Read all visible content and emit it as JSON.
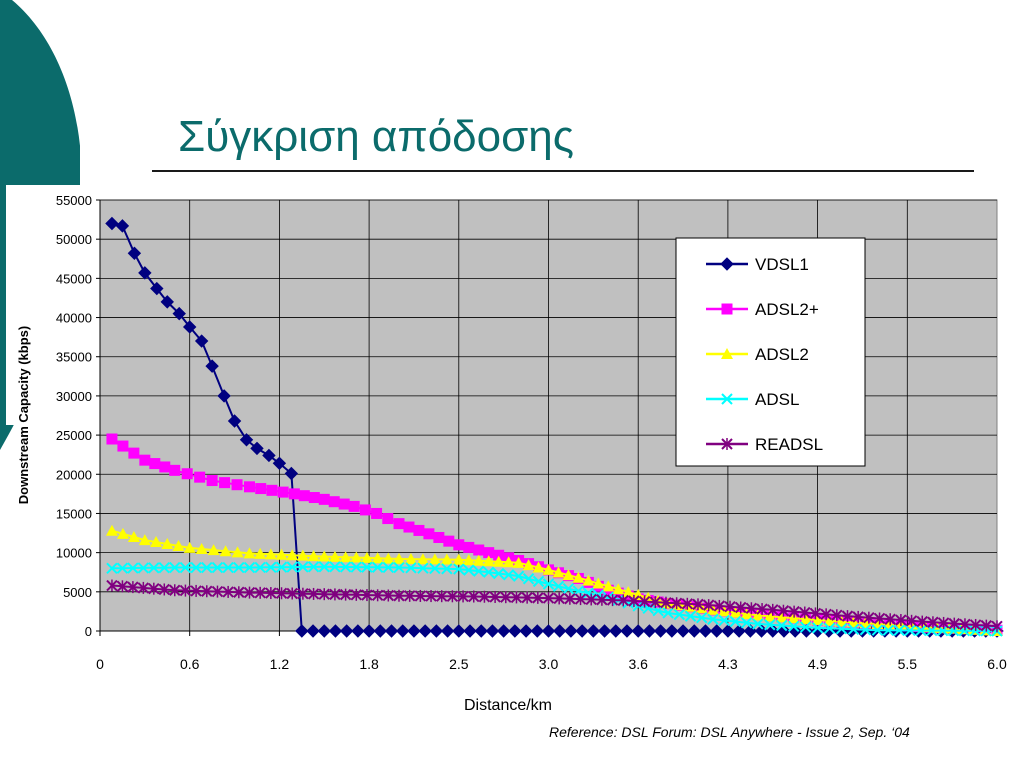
{
  "slide": {
    "title": "Σύγκριση απόδοσης",
    "reference": "Reference: DSL Forum: DSL Anywhere - Issue 2, Sep. ‘04",
    "accent_color": "#0b6b6b"
  },
  "chart_data": {
    "type": "line",
    "xlabel": "Distance/km",
    "ylabel": "Downstream Capacity (kbps)",
    "ylim": [
      0,
      55000
    ],
    "xlim": [
      0,
      6.0
    ],
    "yticks": [
      "0",
      "5000",
      "10000",
      "15000",
      "20000",
      "25000",
      "30000",
      "35000",
      "40000",
      "45000",
      "50000",
      "55000"
    ],
    "xticks": [
      "0",
      "0.6",
      "1.2",
      "1.8",
      "2.5",
      "3.0",
      "3.6",
      "4.3",
      "4.9",
      "5.5",
      "6.0"
    ],
    "grid": true,
    "legend_position": "top-right",
    "plot_background": "#c0c0c0",
    "series": [
      {
        "name": "VDSL1",
        "color": "#000080",
        "marker": "diamond",
        "x": [
          0.08,
          0.15,
          0.23,
          0.3,
          0.38,
          0.45,
          0.53,
          0.6,
          0.68,
          0.75,
          0.83,
          0.9,
          0.98,
          1.05,
          1.13,
          1.2,
          1.28,
          1.35
        ],
        "y": [
          52000,
          51700,
          48200,
          45700,
          43700,
          42000,
          40500,
          38800,
          37000,
          33800,
          30000,
          26800,
          24400,
          23300,
          22400,
          21400,
          20100,
          0
        ],
        "tail": {
          "from": 1.35,
          "step": 0.075,
          "value": 0
        }
      },
      {
        "name": "ADSL2+",
        "color": "#ff00ff",
        "marker": "square",
        "points": [
          [
            0.08,
            24500
          ],
          [
            0.3,
            21800
          ],
          [
            0.5,
            20500
          ],
          [
            0.75,
            19200
          ],
          [
            1.0,
            18400
          ],
          [
            1.3,
            17500
          ],
          [
            1.5,
            16800
          ],
          [
            1.7,
            15900
          ],
          [
            1.85,
            15000
          ],
          [
            2.0,
            13700
          ],
          [
            2.2,
            12400
          ],
          [
            2.4,
            11000
          ],
          [
            2.6,
            10000
          ],
          [
            2.8,
            9000
          ],
          [
            3.0,
            7800
          ],
          [
            3.2,
            6700
          ],
          [
            3.4,
            5200
          ],
          [
            3.6,
            4100
          ],
          [
            3.8,
            3500
          ],
          [
            4.1,
            2700
          ],
          [
            4.4,
            2100
          ],
          [
            4.8,
            1400
          ],
          [
            5.2,
            800
          ],
          [
            5.6,
            400
          ],
          [
            6.0,
            100
          ]
        ]
      },
      {
        "name": "ADSL2",
        "color": "#ffff00",
        "marker": "triangle",
        "points": [
          [
            0.08,
            12800
          ],
          [
            0.3,
            11600
          ],
          [
            0.6,
            10600
          ],
          [
            1.0,
            9900
          ],
          [
            1.5,
            9500
          ],
          [
            2.0,
            9200
          ],
          [
            2.4,
            9100
          ],
          [
            2.6,
            8900
          ],
          [
            2.8,
            8700
          ],
          [
            3.0,
            7800
          ],
          [
            3.2,
            6800
          ],
          [
            3.4,
            5700
          ],
          [
            3.6,
            4600
          ],
          [
            3.8,
            3500
          ],
          [
            4.1,
            2700
          ],
          [
            4.4,
            2000
          ],
          [
            4.8,
            1400
          ],
          [
            5.2,
            900
          ],
          [
            5.6,
            400
          ],
          [
            6.0,
            0
          ]
        ]
      },
      {
        "name": "ADSL",
        "color": "#00ffff",
        "marker": "x",
        "points": [
          [
            0.08,
            8000
          ],
          [
            0.5,
            8100
          ],
          [
            1.0,
            8100
          ],
          [
            1.5,
            8200
          ],
          [
            2.0,
            8100
          ],
          [
            2.4,
            7900
          ],
          [
            2.6,
            7500
          ],
          [
            2.8,
            7000
          ],
          [
            3.0,
            6000
          ],
          [
            3.2,
            5100
          ],
          [
            3.4,
            4300
          ],
          [
            3.6,
            3200
          ],
          [
            3.8,
            2300
          ],
          [
            4.1,
            1500
          ],
          [
            4.4,
            900
          ],
          [
            4.8,
            400
          ],
          [
            5.2,
            100
          ],
          [
            6.0,
            0
          ]
        ]
      },
      {
        "name": "READSL",
        "color": "#800080",
        "marker": "star",
        "points": [
          [
            0.08,
            5800
          ],
          [
            0.5,
            5200
          ],
          [
            1.0,
            4900
          ],
          [
            1.5,
            4700
          ],
          [
            2.0,
            4500
          ],
          [
            2.5,
            4400
          ],
          [
            3.0,
            4200
          ],
          [
            3.5,
            3900
          ],
          [
            4.0,
            3400
          ],
          [
            4.5,
            2700
          ],
          [
            5.0,
            1900
          ],
          [
            5.5,
            1200
          ],
          [
            6.0,
            600
          ]
        ]
      }
    ]
  }
}
